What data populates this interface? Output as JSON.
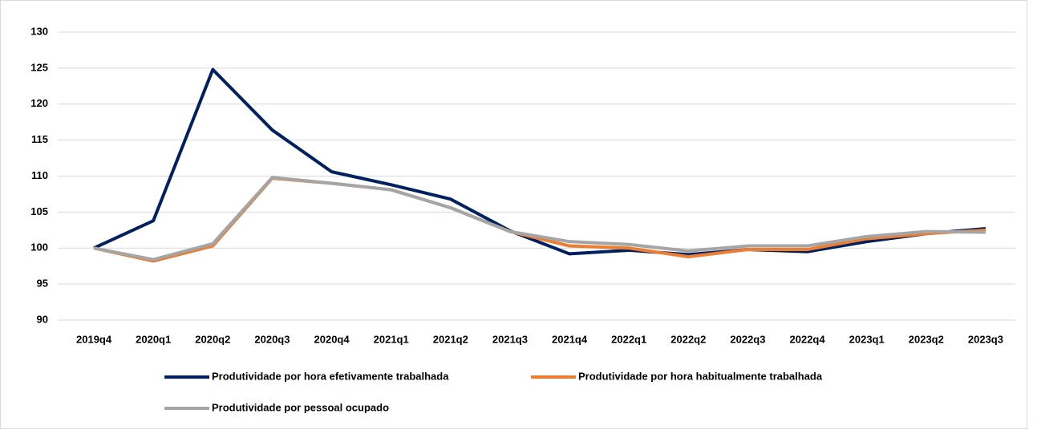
{
  "chart_data": {
    "type": "line",
    "categories": [
      "2019q4",
      "2020q1",
      "2020q2",
      "2020q3",
      "2020q4",
      "2021q1",
      "2021q2",
      "2021q3",
      "2021q4",
      "2022q1",
      "2022q2",
      "2022q3",
      "2022q4",
      "2023q1",
      "2023q2",
      "2023q3"
    ],
    "series": [
      {
        "name": "Produtividade por hora efetivamente trabalhada",
        "color": "#002060",
        "values": [
          100,
          103.8,
          124.8,
          116.4,
          110.6,
          108.8,
          106.8,
          102.4,
          99.2,
          99.7,
          99.1,
          99.8,
          99.5,
          100.9,
          102.0,
          102.7
        ]
      },
      {
        "name": "Produtividade por hora habitualmente trabalhada",
        "color": "#ed7d31",
        "values": [
          100,
          98.2,
          100.3,
          109.7,
          109.0,
          108.1,
          105.6,
          102.3,
          100.3,
          100.0,
          98.8,
          99.8,
          99.8,
          101.3,
          102.0,
          102.5
        ]
      },
      {
        "name": "Produtividade por pessoal ocupado",
        "color": "#a5a5a5",
        "values": [
          100,
          98.4,
          100.6,
          109.8,
          109.0,
          108.1,
          105.6,
          102.3,
          100.9,
          100.5,
          99.6,
          100.3,
          100.3,
          101.6,
          102.3,
          102.2
        ]
      }
    ],
    "ylim": [
      90,
      130
    ],
    "yticks": [
      90,
      95,
      100,
      105,
      110,
      115,
      120,
      125,
      130
    ],
    "grid": true,
    "legend": "bottom"
  }
}
